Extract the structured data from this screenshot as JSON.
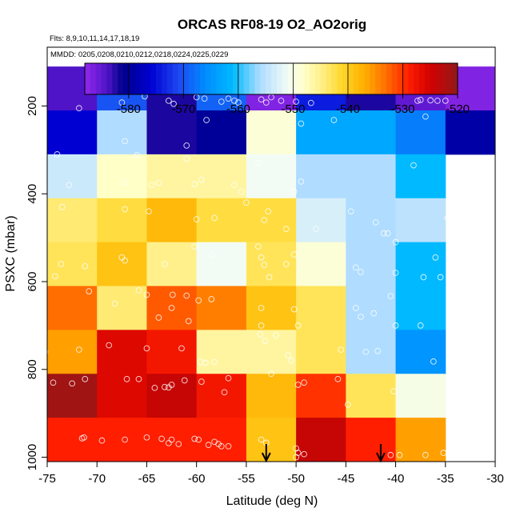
{
  "chart_data": {
    "type": "heatmap",
    "title": "ORCAS RF08-19 O2_AO2orig",
    "subtitle_flights": "Flts: 8,9,10,11,14,17,18,19",
    "subtitle_dates": "MMDD: 0205,0208,0210,0212,0218,0224,0225,0229",
    "xlabel": "Latitude (deg N)",
    "ylabel": "PSXC (mbar)",
    "xlim": [
      -75,
      -30
    ],
    "ylim": [
      1000,
      100
    ],
    "x_ticks": [
      -75,
      -70,
      -65,
      -60,
      -55,
      -50,
      -45,
      -40,
      -35,
      -30
    ],
    "x_tick_labels": [
      "-75",
      "-70",
      "-65",
      "-60",
      "-55",
      "-50",
      "-45",
      "-40",
      "-35",
      "-30"
    ],
    "y_ticks": [
      200,
      400,
      600,
      800,
      1000
    ],
    "y_tick_labels": [
      "200",
      "400",
      "600",
      "800",
      "1000"
    ],
    "colorbar": {
      "range": [
        -588,
        -520
      ],
      "ticks": [
        -580,
        -570,
        -560,
        -550,
        -540,
        -530,
        -520
      ],
      "tick_labels": [
        "-580",
        "-570",
        "-560",
        "-550",
        "-540",
        "-530",
        "-520"
      ]
    },
    "lat_bins": [
      -75,
      -70,
      -65,
      -60,
      -55,
      -50,
      -45,
      -40,
      -35,
      -30
    ],
    "p_bins": [
      100,
      200,
      300,
      400,
      500,
      600,
      700,
      800,
      900,
      1000
    ],
    "cells": [
      [
        -584,
        -570,
        -582,
        -569,
        -587,
        -574,
        -582,
        -585,
        -587
      ],
      [
        -576,
        -556,
        -582,
        -580,
        -549,
        -563,
        -563,
        -567,
        -579
      ],
      [
        -554,
        -548,
        -546,
        -546,
        -551,
        -556,
        -556,
        -561,
        null
      ],
      [
        -544,
        -542,
        -538,
        -542,
        -542,
        -553,
        -556,
        -555,
        null
      ],
      [
        -543,
        -539,
        -545,
        -551,
        -543,
        -549,
        -556,
        -561,
        null
      ],
      [
        -533,
        -544,
        -532,
        -534,
        -539,
        -543,
        -556,
        -561,
        null
      ],
      [
        -536,
        -526,
        -528,
        -546,
        -546,
        -543,
        -556,
        -565,
        null
      ],
      [
        -521,
        -526,
        -524,
        -528,
        -538,
        -530,
        -543,
        -550,
        null
      ],
      [
        -529,
        -529,
        -529,
        -529,
        -539,
        -524,
        -529,
        -536,
        null
      ]
    ],
    "arrows_lat": [
      -53,
      -41.5
    ],
    "obs": [
      [
        -71.8,
        205
      ],
      [
        -67.5,
        192
      ],
      [
        -65.2,
        178
      ],
      [
        -62.8,
        188
      ],
      [
        -62.3,
        195
      ],
      [
        -60,
        180
      ],
      [
        -59.2,
        183
      ],
      [
        -57.5,
        190
      ],
      [
        -56.8,
        183
      ],
      [
        -56.2,
        188
      ],
      [
        -55.8,
        192
      ],
      [
        -53.5,
        185
      ],
      [
        -53,
        192
      ],
      [
        -52.5,
        180
      ],
      [
        -51.5,
        188
      ],
      [
        -50,
        190
      ],
      [
        -48.5,
        193
      ],
      [
        -37.8,
        188
      ],
      [
        -37.5,
        186
      ],
      [
        -36.5,
        187
      ],
      [
        -35.8,
        188
      ],
      [
        -35,
        188
      ],
      [
        -67.2,
        280
      ],
      [
        -61,
        290
      ],
      [
        -59,
        232
      ],
      [
        -49.5,
        240
      ],
      [
        -46.2,
        232
      ],
      [
        -37,
        224
      ],
      [
        -74,
        310
      ],
      [
        -72.8,
        380
      ],
      [
        -67.2,
        375
      ],
      [
        -66,
        312
      ],
      [
        -64.5,
        380
      ],
      [
        -63.8,
        375
      ],
      [
        -61,
        320
      ],
      [
        -60.2,
        378
      ],
      [
        -59.5,
        368
      ],
      [
        -56.2,
        380
      ],
      [
        -53.8,
        330
      ],
      [
        -55.5,
        395
      ],
      [
        -50.2,
        395
      ],
      [
        -49.5,
        372
      ],
      [
        -38.2,
        335
      ],
      [
        -73.5,
        430
      ],
      [
        -67.2,
        435
      ],
      [
        -64.8,
        440
      ],
      [
        -60,
        458
      ],
      [
        -58.2,
        455
      ],
      [
        -55,
        420
      ],
      [
        -52.8,
        440
      ],
      [
        -53.2,
        460
      ],
      [
        -51,
        480
      ],
      [
        -48,
        480
      ],
      [
        -44.5,
        440
      ],
      [
        -42,
        465
      ],
      [
        -41.2,
        490
      ],
      [
        -40.8,
        490
      ],
      [
        -40,
        510
      ],
      [
        -34.8,
        455
      ],
      [
        -74.2,
        588
      ],
      [
        -73.6,
        560
      ],
      [
        -71.2,
        565
      ],
      [
        -67.5,
        545
      ],
      [
        -67.2,
        552
      ],
      [
        -63.2,
        560
      ],
      [
        -60.2,
        520
      ],
      [
        -58.4,
        538
      ],
      [
        -53.8,
        520
      ],
      [
        -53.5,
        545
      ],
      [
        -53.2,
        562
      ],
      [
        -52.7,
        590
      ],
      [
        -51,
        560
      ],
      [
        -50.2,
        538
      ],
      [
        -44,
        568
      ],
      [
        -43.5,
        578
      ],
      [
        -40,
        580
      ],
      [
        -37.2,
        590
      ],
      [
        -35.5,
        590
      ],
      [
        -36,
        545
      ],
      [
        -70.8,
        622
      ],
      [
        -68.2,
        650
      ],
      [
        -65.8,
        620
      ],
      [
        -65,
        630
      ],
      [
        -63.8,
        682
      ],
      [
        -62.4,
        630
      ],
      [
        -61,
        632
      ],
      [
        -62.5,
        660
      ],
      [
        -60.8,
        690
      ],
      [
        -59.8,
        643
      ],
      [
        -58.5,
        640
      ],
      [
        -53.5,
        660
      ],
      [
        -53.5,
        700
      ],
      [
        -50.2,
        663
      ],
      [
        -49.8,
        700
      ],
      [
        -44,
        660
      ],
      [
        -43.5,
        680
      ],
      [
        -42.2,
        672
      ],
      [
        -40.5,
        633
      ],
      [
        -40,
        700
      ],
      [
        -37.5,
        700
      ],
      [
        -75.2,
        760
      ],
      [
        -71.8,
        755
      ],
      [
        -68.8,
        745
      ],
      [
        -65,
        752
      ],
      [
        -61.5,
        752
      ],
      [
        -59.6,
        783
      ],
      [
        -59.1,
        785
      ],
      [
        -58.2,
        783
      ],
      [
        -53.6,
        720
      ],
      [
        -53.1,
        735
      ],
      [
        -52,
        722
      ],
      [
        -50.8,
        768
      ],
      [
        -50.5,
        780
      ],
      [
        -45.5,
        755
      ],
      [
        -43,
        760
      ],
      [
        -41.8,
        758
      ],
      [
        -36.2,
        782
      ],
      [
        -74.4,
        830
      ],
      [
        -72.5,
        832
      ],
      [
        -71.2,
        822
      ],
      [
        -67,
        822
      ],
      [
        -65.8,
        822
      ],
      [
        -64.2,
        842
      ],
      [
        -63.2,
        840
      ],
      [
        -62.8,
        841
      ],
      [
        -62.5,
        835
      ],
      [
        -61.2,
        825
      ],
      [
        -59.5,
        828
      ],
      [
        -57.2,
        852
      ],
      [
        -56.8,
        820
      ],
      [
        -52.5,
        810
      ],
      [
        -49.8,
        835
      ],
      [
        -49.2,
        830
      ],
      [
        -45.8,
        822
      ],
      [
        -44.8,
        880
      ],
      [
        -40.2,
        850
      ],
      [
        -71.5,
        957
      ],
      [
        -71.3,
        955
      ],
      [
        -69.5,
        962
      ],
      [
        -67.2,
        960
      ],
      [
        -65,
        955
      ],
      [
        -63.5,
        958
      ],
      [
        -62.5,
        960
      ],
      [
        -62.8,
        968
      ],
      [
        -61.8,
        970
      ],
      [
        -60.2,
        958
      ],
      [
        -59.8,
        960
      ],
      [
        -58.8,
        972
      ],
      [
        -58.2,
        965
      ],
      [
        -57.8,
        970
      ],
      [
        -57.5,
        975
      ],
      [
        -56.8,
        975
      ],
      [
        -53.5,
        960
      ],
      [
        -53,
        967
      ],
      [
        -50,
        980
      ],
      [
        -50,
        1000
      ],
      [
        -49.8,
        990
      ],
      [
        -49.2,
        993
      ],
      [
        -40.5,
        995
      ],
      [
        -39.6,
        995
      ],
      [
        -37,
        995
      ],
      [
        -35.2,
        990
      ]
    ]
  }
}
